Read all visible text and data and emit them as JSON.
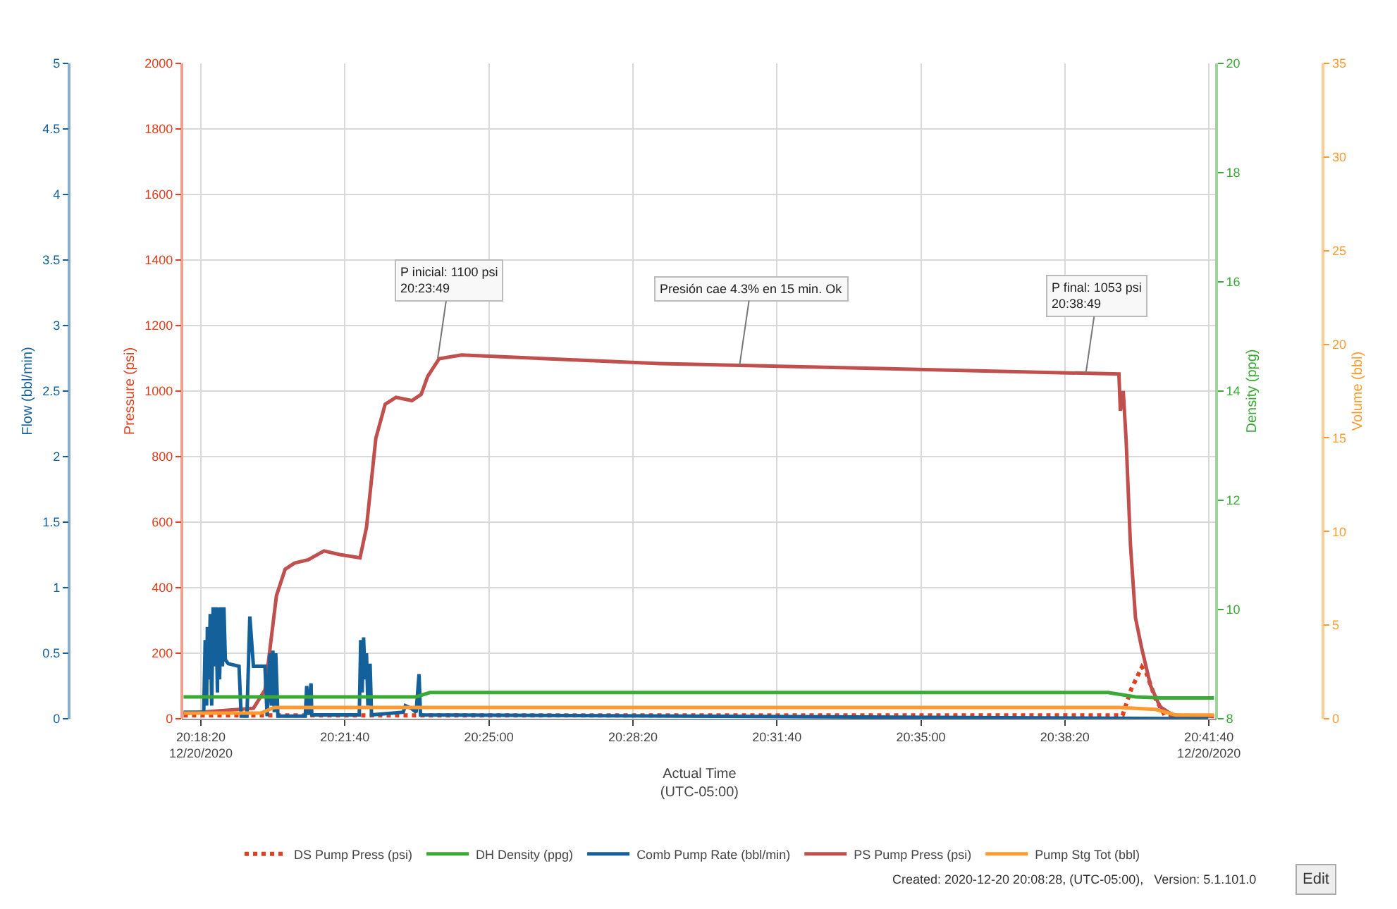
{
  "chart_data": [
    {
      "type": "line",
      "xlabel": "Actual Time\n(UTC-05:00)",
      "ylabel": "Pressure (psi)",
      "y2label": "Flow (bbl/min)",
      "y3label": "Density (ppg)",
      "xlim": [
        "2020-12-20T20:17:54",
        "2020-12-20T20:41:51"
      ],
      "xticks": [
        {
          "value": "2020-12-20T20:18:20",
          "label": "20:18:20\n12/20/2020"
        },
        {
          "value": "2020-12-20T20:21:40",
          "label": "20:21:40"
        },
        {
          "value": "2020-12-20T20:25:00",
          "label": "20:25:00"
        },
        {
          "value": "2020-12-20T20:28:20",
          "label": "20:28:20"
        },
        {
          "value": "2020-12-20T20:31:40",
          "label": "20:31:40"
        },
        {
          "value": "2020-12-20T20:35:00",
          "label": "20:35:00"
        },
        {
          "value": "2020-12-20T20:38:20",
          "label": "20:38:20"
        },
        {
          "value": "2020-12-20T20:41:40",
          "label": "20:41:40\n12/20/2020"
        }
      ],
      "ylim": [
        0,
        2000
      ],
      "yticks": [
        0,
        200,
        400,
        600,
        800,
        1000,
        1200,
        1400,
        1600,
        1800,
        2000
      ],
      "y2lim": [
        0,
        5
      ],
      "y2ticks": [
        0,
        0.5,
        1,
        1.5,
        2,
        2.5,
        3,
        3.5,
        4,
        4.5,
        5
      ],
      "y3lim": [
        8,
        20
      ],
      "y3ticks": [
        8,
        10,
        12,
        14,
        16,
        18,
        20
      ],
      "grid": true,
      "legend": "bottom",
      "marker": "none",
      "series": [
        {
          "name": "DS Pump Press (psi)",
          "color": "#e0401e",
          "line_style": "dotted",
          "x": [
            "2020-12-20T20:17:56",
            "2020-12-20T20:39:40",
            "2020-12-20T20:39:52",
            "2020-12-20T20:40:07",
            "2020-12-20T20:40:13",
            "2020-12-20T20:40:26",
            "2020-12-20T20:40:39",
            "2020-12-20T20:41:47"
          ],
          "values": [
            10,
            10,
            90,
            158,
            140,
            60,
            10,
            8
          ]
        },
        {
          "name": "DH Density (ppg)",
          "color": "#3aa935",
          "axis": "y3",
          "x": [
            "2020-12-20T20:17:56",
            "2020-12-20T20:23:19",
            "2020-12-20T20:23:38",
            "2020-12-20T20:39:20",
            "2020-12-20T20:39:58",
            "2020-12-20T20:40:35",
            "2020-12-20T20:41:47"
          ],
          "values": [
            8.4,
            8.4,
            8.48,
            8.48,
            8.4,
            8.38,
            8.38
          ]
        },
        {
          "name": "Comb Pump Rate (bbl/min)",
          "color": "#14609a",
          "axis": "y2",
          "x": [
            "2020-12-20T20:17:56",
            "2020-12-20T20:18:24",
            "2020-12-20T20:18:26",
            "2020-12-20T20:18:28",
            "2020-12-20T20:18:29",
            "2020-12-20T20:18:31",
            "2020-12-20T20:18:33",
            "2020-12-20T20:18:35",
            "2020-12-20T20:18:37",
            "2020-12-20T20:18:39",
            "2020-12-20T20:18:41",
            "2020-12-20T20:18:43",
            "2020-12-20T20:18:44",
            "2020-12-20T20:18:46",
            "2020-12-20T20:18:48",
            "2020-12-20T20:18:50",
            "2020-12-20T20:18:52",
            "2020-12-20T20:18:54",
            "2020-12-20T20:18:58",
            "2020-12-20T20:19:13",
            "2020-12-20T20:19:16",
            "2020-12-20T20:19:24",
            "2020-12-20T20:19:28",
            "2020-12-20T20:19:33",
            "2020-12-20T20:19:49",
            "2020-12-20T20:19:52",
            "2020-12-20T20:19:56",
            "2020-12-20T20:19:58",
            "2020-12-20T20:20:00",
            "2020-12-20T20:20:02",
            "2020-12-20T20:20:04",
            "2020-12-20T20:20:07",
            "2020-12-20T20:20:45",
            "2020-12-20T20:20:47",
            "2020-12-20T20:20:49",
            "2020-12-20T20:20:53",
            "2020-12-20T20:20:54",
            "2020-12-20T20:22:00",
            "2020-12-20T20:22:02",
            "2020-12-20T20:22:04",
            "2020-12-20T20:22:06",
            "2020-12-20T20:22:08",
            "2020-12-20T20:22:10",
            "2020-12-20T20:22:12",
            "2020-12-20T20:22:15",
            "2020-12-20T20:22:17",
            "2020-12-20T20:23:01",
            "2020-12-20T20:23:04",
            "2020-12-20T20:23:12",
            "2020-12-20T20:23:19",
            "2020-12-20T20:23:23",
            "2020-12-20T20:23:25",
            "2020-12-20T20:41:39"
          ],
          "values": [
            0.05,
            0.05,
            0.6,
            0.1,
            0.7,
            0.3,
            0.8,
            0.1,
            0.85,
            0.4,
            0.85,
            0.2,
            0.85,
            0.3,
            0.85,
            0.4,
            0.85,
            0.45,
            0.42,
            0.4,
            0.02,
            0.02,
            0.78,
            0.4,
            0.4,
            0.02,
            0.5,
            0.1,
            0.52,
            0.05,
            0.5,
            0.02,
            0.02,
            0.25,
            0.03,
            0.27,
            0.03,
            0.03,
            0.6,
            0.2,
            0.62,
            0.3,
            0.5,
            0.1,
            0.42,
            0.03,
            0.05,
            0.1,
            0.08,
            0.05,
            0.34,
            0.03,
            0
          ]
        },
        {
          "name": "PS Pump Press (psi)",
          "color": "#c0504d",
          "x": [
            "2020-12-20T20:17:56",
            "2020-12-20T20:19:33",
            "2020-12-20T20:19:49",
            "2020-12-20T20:20:05",
            "2020-12-20T20:20:17",
            "2020-12-20T20:20:30",
            "2020-12-20T20:20:49",
            "2020-12-20T20:21:11",
            "2020-12-20T20:21:33",
            "2020-12-20T20:22:01",
            "2020-12-20T20:22:10",
            "2020-12-20T20:22:23",
            "2020-12-20T20:22:36",
            "2020-12-20T20:22:51",
            "2020-12-20T20:23:13",
            "2020-12-20T20:23:26",
            "2020-12-20T20:23:35",
            "2020-12-20T20:23:51",
            "2020-12-20T20:24:22",
            "2020-12-20T20:28:58",
            "2020-12-20T20:39:35",
            "2020-12-20T20:39:37",
            "2020-12-20T20:39:41",
            "2020-12-20T20:39:45",
            "2020-12-20T20:39:51",
            "2020-12-20T20:39:58",
            "2020-12-20T20:40:07",
            "2020-12-20T20:40:19",
            "2020-12-20T20:40:32",
            "2020-12-20T20:40:54",
            "2020-12-20T20:41:47"
          ],
          "values": [
            16,
            32,
            88,
            376,
            456,
            475,
            485,
            512,
            501,
            491,
            584,
            856,
            960,
            981,
            971,
            990,
            1045,
            1099,
            1110,
            1084,
            1052,
            940,
            1000,
            852,
            532,
            308,
            212,
            101,
            37,
            5,
            8
          ]
        }
      ],
      "annotations": [
        {
          "text": "P inicial: 1100 psi\n20:23:49",
          "x": "2020-12-20T20:23:49",
          "y": 1100
        },
        {
          "text": "Presión cae 4.3% en 15 min. Ok",
          "x": "2020-12-20T20:30:48",
          "y": 1076
        },
        {
          "text": "P final: 1053 psi\n20:38:49",
          "x": "2020-12-20T20:38:49",
          "y": 1053
        },
        "Created: 2020-12-20 20:08:28, (UTC-05:00),   Version: 5.1.101.0",
        "Edit"
      ]
    },
    {
      "type": "line",
      "ylabel": "Volume (bbl)",
      "tick_labels": "y",
      "marker": "none",
      "xlim": [
        "2020-12-20T20:17:54",
        "2020-12-20T20:41:51"
      ],
      "ylim": [
        0,
        35
      ],
      "yticks": [
        0,
        5,
        10,
        15,
        20,
        25,
        30,
        35
      ],
      "series": [
        {
          "name": "Pump Stg Tot (bbl)",
          "color": "#ff9a2e",
          "x": [
            "2020-12-20T20:17:56",
            "2020-12-20T20:19:43",
            "2020-12-20T20:20:02",
            "2020-12-20T20:39:35",
            "2020-12-20T20:40:26",
            "2020-12-20T20:40:54",
            "2020-12-20T20:41:47"
          ],
          "values": [
            0.3,
            0.3,
            0.6,
            0.6,
            0.5,
            0.2,
            0.2
          ]
        }
      ]
    }
  ]
}
